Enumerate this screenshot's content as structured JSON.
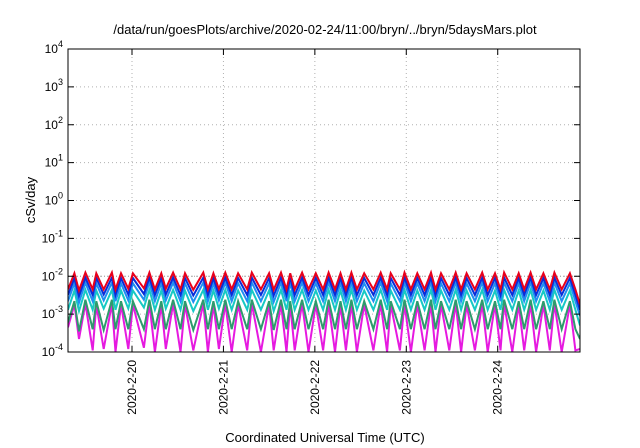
{
  "chart_data": {
    "type": "line",
    "title": "/data/run/goesPlots/archive/2020-02-24/11:00/bryn/../bryn/5daysMars.plot",
    "xlabel": "Coordinated Universal Time (UTC)",
    "ylabel": "cSv/day",
    "y_scale": "log",
    "ylim": [
      0.0001,
      10000
    ],
    "xlim": [
      0,
      5.6
    ],
    "grid": true,
    "x_ticks": [
      {
        "pos": 0.7,
        "label": "2020-2-20"
      },
      {
        "pos": 1.7,
        "label": "2020-2-21"
      },
      {
        "pos": 2.7,
        "label": "2020-2-22"
      },
      {
        "pos": 3.7,
        "label": "2020-2-23"
      },
      {
        "pos": 4.7,
        "label": "2020-2-24"
      }
    ],
    "y_ticks": [
      {
        "exp": "-4",
        "value": 0.0001
      },
      {
        "exp": "-3",
        "value": 0.001
      },
      {
        "exp": "-2",
        "value": 0.01
      },
      {
        "exp": "-1",
        "value": 0.1
      },
      {
        "exp": "0",
        "value": 1
      },
      {
        "exp": "1",
        "value": 10
      },
      {
        "exp": "2",
        "value": 100
      },
      {
        "exp": "3",
        "value": 1000
      },
      {
        "exp": "4",
        "value": 10000
      }
    ],
    "reference_line": {
      "value": 0.01,
      "color": "#a0a0a0",
      "style": "dotted"
    },
    "series": [
      {
        "color": "#e8001c",
        "values_x": [
          0,
          0.07,
          0.12,
          0.19,
          0.27,
          0.31,
          0.39,
          0.48,
          0.52,
          0.58,
          0.66,
          0.71,
          0.83,
          0.89,
          0.95,
          1.02,
          1.07,
          1.15,
          1.23,
          1.28,
          1.37,
          1.48,
          1.53,
          1.59,
          1.65,
          1.72,
          1.79,
          1.86,
          1.96,
          2.01,
          2.11,
          2.2,
          2.25,
          2.33,
          2.39,
          2.43,
          2.48,
          2.56,
          2.63,
          2.71,
          2.79,
          2.85,
          2.92,
          2.98,
          3.04,
          3.1,
          3.16,
          3.24,
          3.34,
          3.42,
          3.49,
          3.53,
          3.63,
          3.68,
          3.75,
          3.82,
          3.9,
          3.97,
          4.02,
          4.08,
          4.17,
          4.24,
          4.3,
          4.36,
          4.45,
          4.53,
          4.59,
          4.67,
          4.73,
          4.77,
          4.86,
          4.93,
          4.99,
          5.06,
          5.12,
          5.2,
          5.27,
          5.32,
          5.4,
          5.49,
          5.55,
          5.6
        ],
        "values_y": [
          0.0045,
          0.012,
          0.0042,
          0.0125,
          0.0045,
          0.012,
          0.0045,
          0.0125,
          0.0045,
          0.012,
          0.0047,
          0.012,
          0.0048,
          0.0125,
          0.0045,
          0.012,
          0.0047,
          0.0125,
          0.0045,
          0.012,
          0.0044,
          0.0125,
          0.0045,
          0.012,
          0.0046,
          0.0125,
          0.0045,
          0.012,
          0.0045,
          0.0125,
          0.0045,
          0.012,
          0.0044,
          0.0125,
          0.0045,
          0.012,
          0.0045,
          0.0125,
          0.0045,
          0.012,
          0.0045,
          0.0125,
          0.0045,
          0.012,
          0.0045,
          0.0125,
          0.0045,
          0.012,
          0.0045,
          0.0125,
          0.0045,
          0.012,
          0.0045,
          0.0125,
          0.0045,
          0.012,
          0.0045,
          0.0125,
          0.0045,
          0.012,
          0.0045,
          0.0125,
          0.0045,
          0.012,
          0.0045,
          0.0125,
          0.0045,
          0.012,
          0.0045,
          0.0125,
          0.0045,
          0.012,
          0.0045,
          0.0125,
          0.0045,
          0.012,
          0.0045,
          0.0125,
          0.0045,
          0.012,
          0.0045,
          0.0018
        ]
      },
      {
        "color": "#0a2cd8",
        "values_x": [
          0,
          0.07,
          0.12,
          0.19,
          0.27,
          0.31,
          0.39,
          0.48,
          0.52,
          0.58,
          0.66,
          0.71,
          0.83,
          0.89,
          0.95,
          1.02,
          1.07,
          1.15,
          1.23,
          1.28,
          1.37,
          1.48,
          1.53,
          1.59,
          1.65,
          1.72,
          1.79,
          1.86,
          1.96,
          2.01,
          2.11,
          2.2,
          2.25,
          2.33,
          2.39,
          2.43,
          2.48,
          2.56,
          2.63,
          2.71,
          2.79,
          2.85,
          2.92,
          2.98,
          3.04,
          3.1,
          3.16,
          3.24,
          3.34,
          3.42,
          3.49,
          3.53,
          3.63,
          3.68,
          3.75,
          3.82,
          3.9,
          3.97,
          4.02,
          4.08,
          4.17,
          4.24,
          4.3,
          4.36,
          4.45,
          4.53,
          4.59,
          4.67,
          4.73,
          4.77,
          4.86,
          4.93,
          4.99,
          5.06,
          5.12,
          5.2,
          5.27,
          5.32,
          5.4,
          5.49,
          5.55,
          5.6
        ],
        "values_y": [
          0.0032,
          0.009,
          0.003,
          0.0092,
          0.0032,
          0.009,
          0.0033,
          0.0092,
          0.0032,
          0.009,
          0.0033,
          0.009,
          0.0034,
          0.0092,
          0.0032,
          0.009,
          0.0033,
          0.0092,
          0.0032,
          0.009,
          0.0031,
          0.0092,
          0.0032,
          0.009,
          0.0033,
          0.0092,
          0.0032,
          0.009,
          0.0032,
          0.0092,
          0.0032,
          0.009,
          0.0031,
          0.0092,
          0.0032,
          0.009,
          0.0032,
          0.0092,
          0.0032,
          0.009,
          0.0032,
          0.0092,
          0.0032,
          0.009,
          0.0032,
          0.0092,
          0.0032,
          0.009,
          0.0032,
          0.0092,
          0.0032,
          0.009,
          0.0032,
          0.0092,
          0.0032,
          0.009,
          0.0032,
          0.0092,
          0.0032,
          0.009,
          0.0032,
          0.0092,
          0.0032,
          0.009,
          0.0032,
          0.0092,
          0.0032,
          0.009,
          0.0032,
          0.0092,
          0.0032,
          0.009,
          0.0032,
          0.0092,
          0.0032,
          0.009,
          0.0032,
          0.0092,
          0.0032,
          0.009,
          0.0032,
          0.0013
        ]
      },
      {
        "color": "#1f8ef2",
        "values_x": [
          0,
          0.07,
          0.12,
          0.19,
          0.27,
          0.31,
          0.39,
          0.48,
          0.52,
          0.58,
          0.66,
          0.71,
          0.83,
          0.89,
          0.95,
          1.02,
          1.07,
          1.15,
          1.23,
          1.28,
          1.37,
          1.48,
          1.53,
          1.59,
          1.65,
          1.72,
          1.79,
          1.86,
          1.96,
          2.01,
          2.11,
          2.2,
          2.25,
          2.33,
          2.39,
          2.43,
          2.48,
          2.56,
          2.63,
          2.71,
          2.79,
          2.85,
          2.92,
          2.98,
          3.04,
          3.1,
          3.16,
          3.24,
          3.34,
          3.42,
          3.49,
          3.53,
          3.63,
          3.68,
          3.75,
          3.82,
          3.9,
          3.97,
          4.02,
          4.08,
          4.17,
          4.24,
          4.3,
          4.36,
          4.45,
          4.53,
          4.59,
          4.67,
          4.73,
          4.77,
          4.86,
          4.93,
          4.99,
          5.06,
          5.12,
          5.2,
          5.27,
          5.32,
          5.4,
          5.49,
          5.55,
          5.6
        ],
        "values_y": [
          0.0022,
          0.0065,
          0.002,
          0.0068,
          0.0022,
          0.0065,
          0.0023,
          0.0068,
          0.0022,
          0.0065,
          0.0023,
          0.0065,
          0.0024,
          0.0068,
          0.0022,
          0.0065,
          0.0023,
          0.0068,
          0.0022,
          0.0065,
          0.0021,
          0.0068,
          0.0022,
          0.0065,
          0.0023,
          0.0068,
          0.0022,
          0.0065,
          0.0022,
          0.0068,
          0.0022,
          0.0065,
          0.0021,
          0.0068,
          0.0022,
          0.0065,
          0.0022,
          0.0068,
          0.0022,
          0.0065,
          0.0022,
          0.0068,
          0.0022,
          0.0065,
          0.0022,
          0.0068,
          0.0022,
          0.0065,
          0.0022,
          0.0068,
          0.0022,
          0.0065,
          0.0022,
          0.0068,
          0.0022,
          0.0065,
          0.0022,
          0.0068,
          0.0022,
          0.0065,
          0.0022,
          0.0068,
          0.0022,
          0.0065,
          0.0022,
          0.0068,
          0.0022,
          0.0065,
          0.0022,
          0.0068,
          0.0022,
          0.0065,
          0.0022,
          0.0068,
          0.0022,
          0.0065,
          0.0022,
          0.0068,
          0.0022,
          0.0065,
          0.0022,
          0.0009
        ]
      },
      {
        "color": "#17c9c4",
        "values_x": [
          0,
          0.07,
          0.12,
          0.19,
          0.27,
          0.31,
          0.39,
          0.48,
          0.52,
          0.58,
          0.66,
          0.71,
          0.83,
          0.89,
          0.95,
          1.02,
          1.07,
          1.15,
          1.23,
          1.28,
          1.37,
          1.48,
          1.53,
          1.59,
          1.65,
          1.72,
          1.79,
          1.86,
          1.96,
          2.01,
          2.11,
          2.2,
          2.25,
          2.33,
          2.39,
          2.43,
          2.48,
          2.56,
          2.63,
          2.71,
          2.79,
          2.85,
          2.92,
          2.98,
          3.04,
          3.1,
          3.16,
          3.24,
          3.34,
          3.42,
          3.49,
          3.53,
          3.63,
          3.68,
          3.75,
          3.82,
          3.9,
          3.97,
          4.02,
          4.08,
          4.17,
          4.24,
          4.3,
          4.36,
          4.45,
          4.53,
          4.59,
          4.67,
          4.73,
          4.77,
          4.86,
          4.93,
          4.99,
          5.06,
          5.12,
          5.2,
          5.27,
          5.32,
          5.4,
          5.49,
          5.55,
          5.6
        ],
        "values_y": [
          0.0013,
          0.0042,
          0.0012,
          0.0044,
          0.0013,
          0.0042,
          0.0014,
          0.0044,
          0.0013,
          0.0042,
          0.0014,
          0.0042,
          0.0015,
          0.0044,
          0.0013,
          0.0042,
          0.0014,
          0.0044,
          0.0013,
          0.0042,
          0.0012,
          0.0044,
          0.0013,
          0.0042,
          0.0014,
          0.0044,
          0.0013,
          0.0042,
          0.0013,
          0.0044,
          0.0013,
          0.0042,
          0.0012,
          0.0044,
          0.0013,
          0.0042,
          0.0013,
          0.0044,
          0.0013,
          0.0042,
          0.0013,
          0.0044,
          0.0013,
          0.0042,
          0.0013,
          0.0044,
          0.0013,
          0.0042,
          0.0013,
          0.0044,
          0.0013,
          0.0042,
          0.0013,
          0.0044,
          0.0013,
          0.0042,
          0.0013,
          0.0044,
          0.0013,
          0.0042,
          0.0013,
          0.0044,
          0.0013,
          0.0042,
          0.0013,
          0.0044,
          0.0013,
          0.0042,
          0.0013,
          0.0044,
          0.0013,
          0.0042,
          0.0013,
          0.0044,
          0.0013,
          0.0042,
          0.0013,
          0.0044,
          0.0013,
          0.0042,
          0.0013,
          0.0005
        ]
      },
      {
        "color": "#2e9a6c",
        "values_x": [
          0,
          0.07,
          0.12,
          0.19,
          0.27,
          0.31,
          0.39,
          0.48,
          0.52,
          0.58,
          0.66,
          0.71,
          0.83,
          0.89,
          0.95,
          1.02,
          1.07,
          1.15,
          1.23,
          1.28,
          1.37,
          1.48,
          1.53,
          1.59,
          1.65,
          1.72,
          1.79,
          1.86,
          1.96,
          2.01,
          2.11,
          2.2,
          2.25,
          2.33,
          2.39,
          2.43,
          2.48,
          2.56,
          2.63,
          2.71,
          2.79,
          2.85,
          2.92,
          2.98,
          3.04,
          3.1,
          3.16,
          3.24,
          3.34,
          3.42,
          3.49,
          3.53,
          3.63,
          3.68,
          3.75,
          3.82,
          3.9,
          3.97,
          4.02,
          4.08,
          4.17,
          4.24,
          4.3,
          4.36,
          4.45,
          4.53,
          4.59,
          4.67,
          4.73,
          4.77,
          4.86,
          4.93,
          4.99,
          5.06,
          5.12,
          5.2,
          5.27,
          5.32,
          5.4,
          5.49,
          5.55,
          5.6
        ],
        "values_y": [
          0.0006,
          0.0022,
          0.00035,
          0.0024,
          0.0004,
          0.0022,
          0.00038,
          0.0024,
          0.0004,
          0.0022,
          0.0004,
          0.0022,
          0.0004,
          0.0024,
          0.0004,
          0.0022,
          0.0004,
          0.0024,
          0.0004,
          0.0022,
          0.00038,
          0.0024,
          0.0004,
          0.0022,
          0.0004,
          0.0024,
          0.0004,
          0.0022,
          0.0004,
          0.0024,
          0.0004,
          0.0022,
          0.00038,
          0.0024,
          0.0004,
          0.0022,
          0.0004,
          0.0024,
          0.0004,
          0.0022,
          0.0004,
          0.0024,
          0.0004,
          0.0022,
          0.0004,
          0.0024,
          0.0004,
          0.0022,
          0.0004,
          0.0024,
          0.0004,
          0.0022,
          0.0004,
          0.0024,
          0.0004,
          0.0022,
          0.0004,
          0.0024,
          0.0004,
          0.0022,
          0.0004,
          0.0024,
          0.0004,
          0.0022,
          0.0004,
          0.0024,
          0.0004,
          0.0022,
          0.0004,
          0.0024,
          0.0004,
          0.0022,
          0.0004,
          0.0024,
          0.0004,
          0.0022,
          0.0004,
          0.0024,
          0.0004,
          0.0022,
          0.0004,
          0.00022
        ]
      },
      {
        "color": "#e619e0",
        "values_x": [
          0,
          0.07,
          0.12,
          0.19,
          0.27,
          0.31,
          0.39,
          0.48,
          0.52,
          0.58,
          0.66,
          0.71,
          0.83,
          0.89,
          0.95,
          1.02,
          1.07,
          1.15,
          1.23,
          1.28,
          1.37,
          1.48,
          1.53,
          1.59,
          1.65,
          1.72,
          1.79,
          1.86,
          1.96,
          2.01,
          2.11,
          2.2,
          2.25,
          2.33,
          2.39,
          2.43,
          2.48,
          2.56,
          2.63,
          2.71,
          2.79,
          2.85,
          2.92,
          2.98,
          3.04,
          3.1,
          3.16,
          3.24,
          3.34,
          3.42,
          3.49,
          3.53,
          3.63,
          3.68,
          3.75,
          3.82,
          3.9,
          3.97,
          4.02,
          4.08,
          4.17,
          4.24,
          4.3,
          4.36,
          4.45,
          4.53,
          4.59,
          4.67,
          4.73,
          4.77,
          4.86,
          4.93,
          4.99,
          5.06,
          5.12,
          5.2,
          5.27,
          5.32,
          5.4,
          5.49,
          5.55,
          5.6
        ],
        "values_y": [
          0.00045,
          0.0018,
          0.00022,
          0.0019,
          0.00011,
          0.0018,
          0.00012,
          0.0019,
          0.0001,
          0.0018,
          0.00012,
          0.0018,
          0.00013,
          0.0019,
          0.0001,
          0.0018,
          0.00012,
          0.0019,
          0.0001,
          0.0018,
          0.00011,
          0.0019,
          0.0001,
          0.0018,
          0.00012,
          0.0019,
          0.0001,
          0.0018,
          0.00011,
          0.0019,
          0.0001,
          0.0018,
          0.00011,
          0.0019,
          0.0001,
          0.0018,
          0.00011,
          0.0019,
          0.0001,
          0.0018,
          0.00011,
          0.0019,
          0.0001,
          0.0018,
          0.00011,
          0.0019,
          0.0001,
          0.0018,
          0.00011,
          0.0019,
          0.0001,
          0.0018,
          0.00011,
          0.0019,
          0.0001,
          0.0018,
          0.00011,
          0.0019,
          0.0001,
          0.0018,
          0.00011,
          0.0019,
          0.0001,
          0.0018,
          0.00011,
          0.0019,
          0.0001,
          0.0018,
          0.00011,
          0.0019,
          0.0001,
          0.0018,
          0.00011,
          0.0019,
          0.0001,
          0.0018,
          0.00011,
          0.0019,
          0.0001,
          0.0018,
          0.00011,
          0.00012
        ]
      }
    ]
  }
}
